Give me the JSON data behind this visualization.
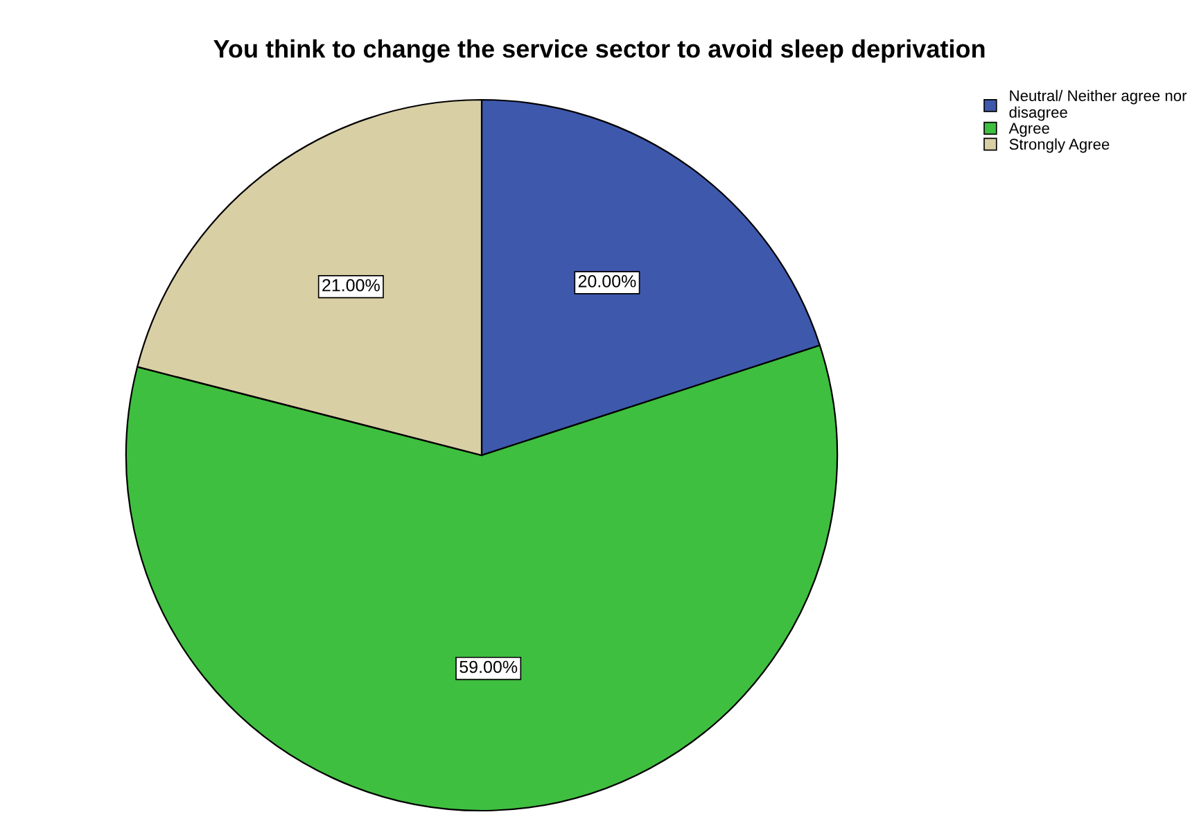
{
  "chart_data": {
    "type": "pie",
    "title": "You think to change the service sector to avoid sleep deprivation",
    "categories": [
      "Neutral/ Neither agree nor\ndisagree",
      "Agree",
      "Strongly Agree"
    ],
    "values": [
      20,
      59,
      21
    ],
    "value_labels": [
      "20.00%",
      "59.00%",
      "21.00%"
    ],
    "colors": [
      "#3e58ac",
      "#3fbf3f",
      "#d9cfa5"
    ],
    "legend": "top right"
  }
}
